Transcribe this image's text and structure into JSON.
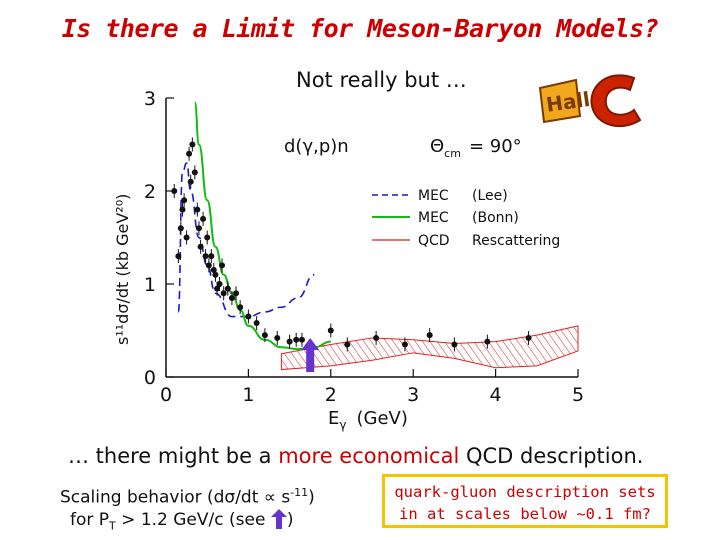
{
  "title": "Is there a Limit for Meson-Baryon Models?",
  "subtitle": "Not really but …",
  "logo_text": "Hall C",
  "caption": {
    "pre": "… there might be a ",
    "highlight": "more economical",
    "post": " QCD description."
  },
  "scaling": {
    "part1": "Scaling behavior (dσ/dt ∝ s",
    "exponent": "-11",
    "part2": ")",
    "line2_pre": "for P",
    "line2_sub": "T",
    "line2_post": " > 1.2 GeV/c  (see ",
    "line2_end": ")"
  },
  "box": {
    "line1": "quark-gluon  description sets",
    "line2": "in at scales below ~0.1 fm?"
  },
  "colors": {
    "title": "#cc0000",
    "box_border": "#f5c400",
    "mec_lee": "#1a1acc",
    "mec_bonn": "#11bb11",
    "qcd": "#dd2222",
    "arrow": "#6633cc"
  },
  "chart_data": {
    "type": "scatter",
    "reaction": "d(γ,p)n",
    "theta_label": "Θ",
    "theta_sub": "cm",
    "theta_value": "=  90°",
    "xlabel_main": "E",
    "xlabel_sub": "γ",
    "xlabel_unit": "(GeV)",
    "ylabel": "s¹¹dσ/dt  (kb GeV²⁰)",
    "xlim": [
      0,
      5
    ],
    "ylim": [
      0,
      3
    ],
    "x_ticks": [
      "0",
      "1",
      "2",
      "3",
      "4",
      "5"
    ],
    "y_ticks": [
      "0",
      "1",
      "2",
      "3"
    ],
    "legend": [
      {
        "name": "MEC",
        "label": "(Lee)",
        "style": "dashed",
        "color": "#1a1acc"
      },
      {
        "name": "MEC",
        "label": "(Bonn)",
        "style": "solid",
        "color": "#11bb11"
      },
      {
        "name": "QCD",
        "label": "Rescattering",
        "style": "band",
        "color": "#dd2222"
      }
    ],
    "series": [
      {
        "name": "MEC (Lee)",
        "x": [
          0.15,
          0.2,
          0.25,
          0.3,
          0.4,
          0.5,
          0.6,
          0.8,
          1.0,
          1.2,
          1.4,
          1.6,
          1.8
        ],
        "y": [
          0.7,
          2.2,
          2.3,
          2.0,
          1.5,
          1.2,
          0.9,
          0.65,
          0.65,
          0.7,
          0.75,
          0.85,
          1.1
        ]
      },
      {
        "name": "MEC (Bonn)",
        "x": [
          0.35,
          0.4,
          0.5,
          0.6,
          0.7,
          0.8,
          0.9,
          1.0,
          1.2,
          1.4,
          1.6,
          1.8,
          2.0
        ],
        "y": [
          2.95,
          2.5,
          1.9,
          1.4,
          1.1,
          0.9,
          0.72,
          0.55,
          0.4,
          0.32,
          0.3,
          0.32,
          0.38
        ]
      },
      {
        "name": "QCD Rescattering upper",
        "x": [
          1.4,
          2.0,
          2.5,
          3.0,
          3.5,
          4.0,
          4.5,
          5.0
        ],
        "y": [
          0.25,
          0.35,
          0.42,
          0.4,
          0.36,
          0.38,
          0.45,
          0.55
        ]
      },
      {
        "name": "QCD Rescattering lower",
        "x": [
          1.4,
          2.0,
          2.5,
          3.0,
          3.5,
          4.0,
          4.5,
          5.0
        ],
        "y": [
          0.08,
          0.12,
          0.18,
          0.26,
          0.2,
          0.1,
          0.12,
          0.28
        ]
      },
      {
        "name": "Data",
        "x": [
          0.1,
          0.15,
          0.18,
          0.2,
          0.22,
          0.25,
          0.28,
          0.3,
          0.32,
          0.35,
          0.38,
          0.4,
          0.42,
          0.45,
          0.48,
          0.5,
          0.52,
          0.55,
          0.58,
          0.6,
          0.62,
          0.65,
          0.68,
          0.7,
          0.75,
          0.8,
          0.85,
          0.9,
          1.0,
          1.1,
          1.2,
          1.35,
          1.5,
          1.58,
          1.65,
          2.0,
          2.2,
          2.55,
          2.9,
          3.2,
          3.5,
          3.9,
          4.4
        ],
        "y": [
          2.0,
          1.3,
          1.6,
          1.8,
          1.9,
          1.5,
          2.4,
          2.1,
          2.5,
          2.2,
          1.8,
          1.6,
          1.4,
          1.7,
          1.3,
          1.5,
          1.2,
          1.3,
          1.15,
          1.1,
          0.95,
          1.0,
          1.2,
          0.9,
          0.95,
          0.85,
          0.9,
          0.75,
          0.65,
          0.58,
          0.45,
          0.42,
          0.38,
          0.4,
          0.4,
          0.5,
          0.35,
          0.42,
          0.35,
          0.45,
          0.35,
          0.38,
          0.42
        ]
      }
    ],
    "annotation_arrow_x": 1.75
  }
}
